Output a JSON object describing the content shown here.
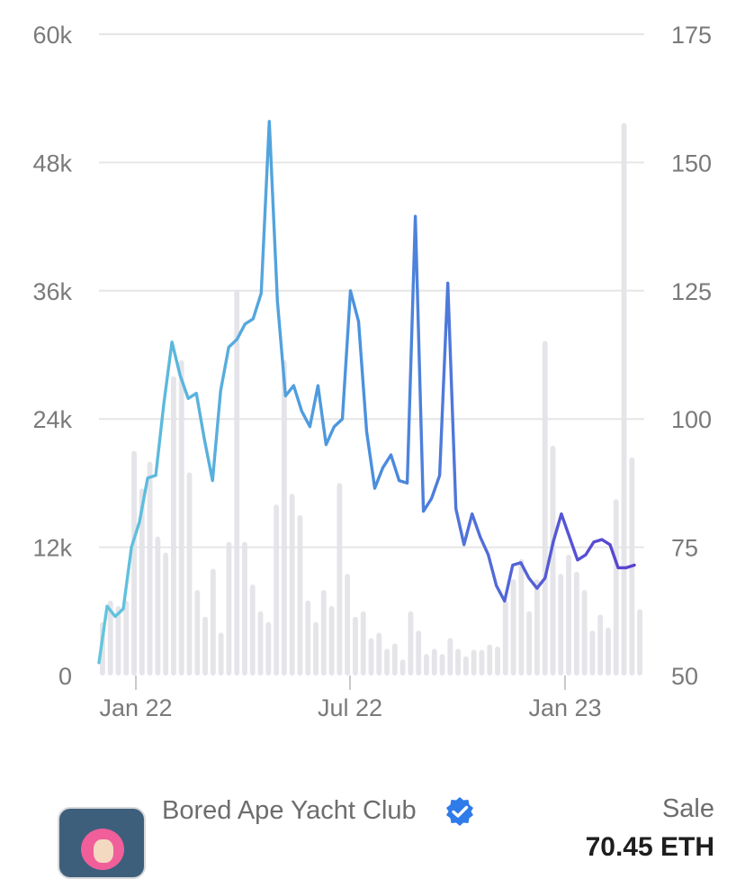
{
  "chart_data": {
    "type": "bar+line",
    "title": "",
    "xlabel": "",
    "ylabel_left": "",
    "ylabel_right": "",
    "x_tick_labels": [
      "Jan 22",
      "Jul 22",
      "Jan 23"
    ],
    "y_left": {
      "ticks": [
        "60k",
        "48k",
        "36k",
        "24k",
        "12k",
        "0"
      ],
      "min": 0,
      "max": 60000
    },
    "y_right": {
      "ticks": [
        "175",
        "150",
        "125",
        "100",
        "75",
        "50"
      ],
      "min": 50,
      "max": 175
    },
    "grid": true,
    "x_range": {
      "start": "2021-12-05",
      "end": "2023-02-19",
      "interval_days": 3.5
    },
    "bar_series": {
      "axis": "left",
      "color": "#e4e4e9",
      "values": [
        5000,
        7000,
        6500,
        7000,
        21000,
        17500,
        20000,
        13000,
        11500,
        28000,
        29500,
        19000,
        8000,
        5500,
        10000,
        4000,
        12500,
        36000,
        12500,
        8500,
        6000,
        5000,
        16000,
        29500,
        17000,
        15000,
        7000,
        5000,
        8000,
        6500,
        18000,
        9500,
        5500,
        6000,
        3500,
        4000,
        2500,
        3000,
        1500,
        6000,
        4200,
        2000,
        2500,
        2000,
        3500,
        2500,
        1800,
        2400,
        2400,
        2900,
        2700,
        7000,
        9000,
        10900,
        6000,
        9000,
        31300,
        21500,
        9500,
        11300,
        9700,
        8000,
        4200,
        5700,
        4500,
        16500,
        51700,
        20400,
        6200
      ]
    },
    "line_series": {
      "axis": "right",
      "color_start": "#62c6dc",
      "color_mid": "#4a90de",
      "color_end": "#5a3fd0",
      "values": [
        52.5,
        63.5,
        61.5,
        63,
        75,
        80,
        88.5,
        89,
        103,
        115,
        108.5,
        104,
        105,
        96,
        88,
        105.5,
        114,
        115.5,
        118.5,
        119.5,
        124.5,
        158,
        123,
        104.5,
        106.5,
        101.5,
        98.5,
        106.5,
        95,
        98.5,
        100,
        125,
        119,
        97.5,
        86.5,
        90.5,
        93,
        88,
        87.5,
        139.5,
        82,
        84.5,
        89,
        126.5,
        82.5,
        75.5,
        81.5,
        77,
        73.5,
        67.5,
        64.5,
        71.5,
        72,
        69,
        67,
        69,
        76,
        81.5,
        77,
        72.5,
        73.5,
        76,
        76.5,
        75.5,
        71,
        71,
        71.5
      ]
    }
  },
  "footer": {
    "collection_name": "Bored Ape Yacht Club",
    "sale_label": "Sale",
    "sale_value": "70.45 ETH",
    "verified_icon": "verified-badge-icon",
    "verified_color": "#2f7bea"
  }
}
